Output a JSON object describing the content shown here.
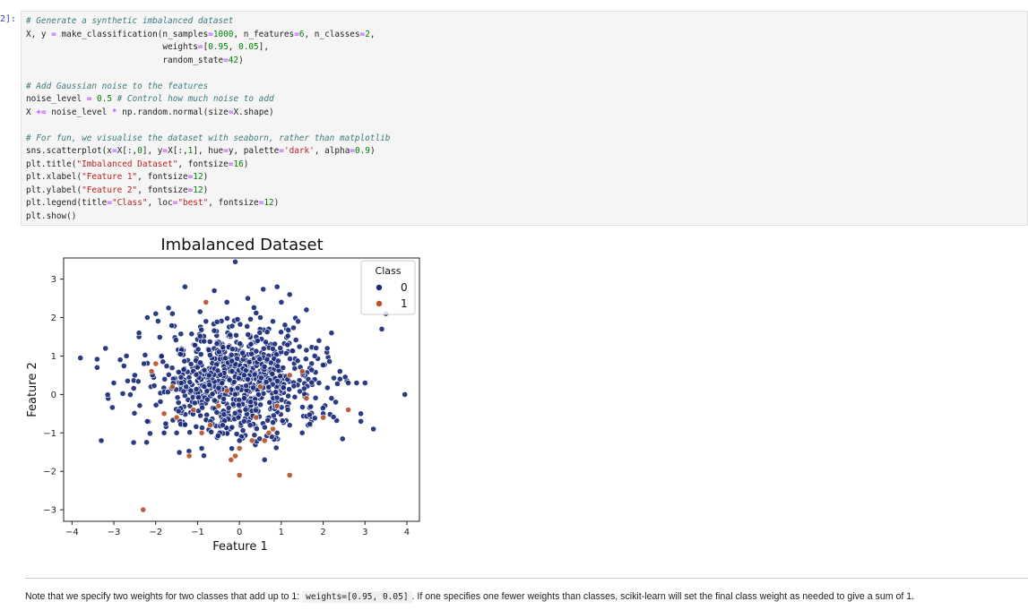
{
  "cell": {
    "prompt": "2]:",
    "code_lines": [
      "# Generate a synthetic imbalanced dataset",
      "X, y = make_classification(n_samples=1000, n_features=6, n_classes=2,",
      "                           weights=[0.95, 0.05],",
      "                           random_state=42)",
      "",
      "# Add Gaussian noise to the features",
      "noise_level = 0.5 # Control how much noise to add",
      "X += noise_level * np.random.normal(size=X.shape)",
      "",
      "# For fun, we visualise the dataset with seaborn, rather than matplotlib",
      "sns.scatterplot(x=X[:,0], y=X[:,1], hue=y, palette='dark', alpha=0.9)",
      "plt.title(\"Imbalanced Dataset\", fontsize=16)",
      "plt.xlabel(\"Feature 1\", fontsize=12)",
      "plt.ylabel(\"Feature 2\", fontsize=12)",
      "plt.legend(title=\"Class\", loc=\"best\", fontsize=12)",
      "plt.show()"
    ]
  },
  "chart_data": {
    "type": "scatter",
    "title": "Imbalanced Dataset",
    "xlabel": "Feature 1",
    "ylabel": "Feature 2",
    "xlim": [
      -4.2,
      4.3
    ],
    "ylim": [
      -3.3,
      3.55
    ],
    "xticks": [
      -4,
      -3,
      -2,
      -1,
      0,
      1,
      2,
      3,
      4
    ],
    "yticks": [
      -3,
      -2,
      -1,
      0,
      1,
      2,
      3
    ],
    "tick_labels_x": [
      "−4",
      "−3",
      "−2",
      "−1",
      "0",
      "1",
      "2",
      "3",
      "4"
    ],
    "tick_labels_y": [
      "−3",
      "−2",
      "−1",
      "0",
      "1",
      "2",
      "3"
    ],
    "grid": false,
    "legend": {
      "title": "Class",
      "placement": "top-right",
      "entries": [
        {
          "label": "0",
          "color": "#1a2b7a"
        },
        {
          "label": "1",
          "color": "#b5532b"
        }
      ]
    },
    "series": [
      {
        "name": "0",
        "color": "#1a2b7a",
        "points": [
          [
            -3.8,
            0.95
          ],
          [
            -3.4,
            0.7
          ],
          [
            -3.2,
            1.2
          ],
          [
            -3.0,
            0.3
          ],
          [
            -2.85,
            0.9
          ],
          [
            -2.7,
            1.0
          ],
          [
            -2.5,
            0.5
          ],
          [
            -2.4,
            1.5
          ],
          [
            -3.3,
            -1.2
          ],
          [
            -2.4,
            1.6
          ],
          [
            -2.2,
            2.0
          ],
          [
            -2.0,
            2.1
          ],
          [
            -1.6,
            2.1
          ],
          [
            -1.3,
            2.8
          ],
          [
            -0.6,
            2.7
          ],
          [
            -0.3,
            2.4
          ],
          [
            -0.1,
            3.45
          ],
          [
            0.2,
            2.5
          ],
          [
            0.9,
            2.8
          ],
          [
            1.2,
            2.6
          ],
          [
            1.6,
            2.2
          ],
          [
            1.9,
            1.4
          ],
          [
            2.2,
            1.6
          ],
          [
            2.4,
            0.6
          ],
          [
            2.6,
            0.3
          ],
          [
            2.8,
            0.3
          ],
          [
            3.0,
            0.3
          ],
          [
            3.4,
            1.7
          ],
          [
            3.5,
            2.1
          ],
          [
            3.95,
            0.0
          ],
          [
            3.2,
            -0.9
          ],
          [
            2.9,
            -0.5
          ],
          [
            2.9,
            -0.7
          ],
          [
            -2.2,
            -0.7
          ],
          [
            -1.8,
            -1.0
          ],
          [
            -1.5,
            -1.0
          ],
          [
            -0.9,
            -1.4
          ],
          [
            -0.4,
            -0.8
          ],
          [
            0.0,
            -1.2
          ],
          [
            0.6,
            -1.7
          ],
          [
            0.9,
            -1.0
          ],
          [
            1.2,
            -0.8
          ],
          [
            1.5,
            -1.0
          ],
          [
            2.0,
            -0.5
          ],
          [
            2.3,
            -0.2
          ],
          [
            -0.8,
            1.9
          ],
          [
            0.5,
            2.0
          ],
          [
            0.8,
            1.9
          ],
          [
            1.0,
            2.4
          ],
          [
            1.4,
            1.9
          ],
          [
            1.8,
            1.0
          ],
          [
            2.1,
            1.2
          ],
          [
            2.2,
            -0.1
          ],
          [
            1.9,
            0.3
          ]
        ]
      },
      {
        "name": "1",
        "color": "#b5532b",
        "points": [
          [
            -2.3,
            -3.0
          ],
          [
            -2.1,
            0.6
          ],
          [
            -2.0,
            0.8
          ],
          [
            -1.8,
            -0.5
          ],
          [
            -1.5,
            -0.6
          ],
          [
            -1.2,
            -1.6
          ],
          [
            -0.9,
            -1.0
          ],
          [
            -0.8,
            2.4
          ],
          [
            -0.5,
            -0.3
          ],
          [
            -0.2,
            -1.7
          ],
          [
            -0.1,
            -1.6
          ],
          [
            0.0,
            -2.1
          ],
          [
            0.0,
            -1.4
          ],
          [
            0.3,
            -1.2
          ],
          [
            0.6,
            -1.2
          ],
          [
            0.7,
            -1.0
          ],
          [
            0.8,
            -0.9
          ],
          [
            1.2,
            -2.1
          ],
          [
            1.5,
            0.6
          ],
          [
            2.0,
            -0.6
          ],
          [
            2.6,
            -0.4
          ],
          [
            1.2,
            0.5
          ],
          [
            -0.7,
            -0.8
          ],
          [
            0.5,
            0.2
          ],
          [
            -1.6,
            0.2
          ],
          [
            0.9,
            -0.3
          ],
          [
            -0.3,
            0.1
          ],
          [
            1.6,
            -0.1
          ],
          [
            -1.1,
            -0.4
          ],
          [
            0.4,
            -0.6
          ]
        ]
      }
    ],
    "cloud_note_seed": 42
  },
  "note": {
    "before": "Note that we specify two weights for two classes that add up to 1: ",
    "code": "weights=[0.95, 0.05]",
    "after": ". If one specifies one fewer weights than classes, scikit-learn will set the final class weight as needed to give a sum of 1."
  }
}
